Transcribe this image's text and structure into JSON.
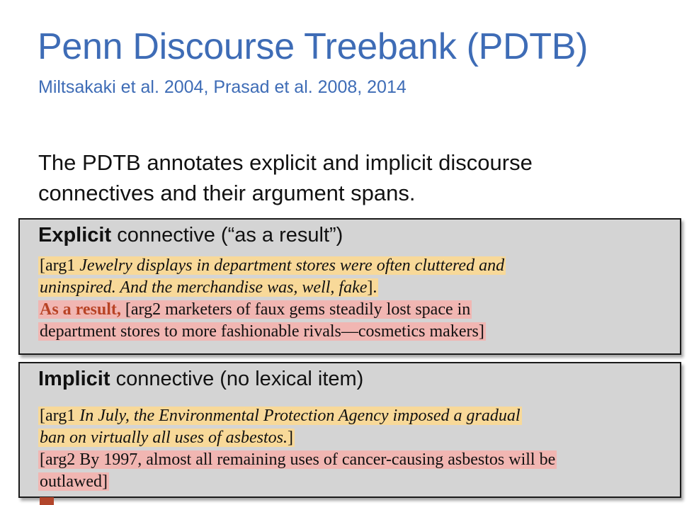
{
  "slide": {
    "title": "Penn Discourse Treebank (PDTB)",
    "subtitle": "Miltsakaki et al. 2004, Prasad et al. 2008, 2014",
    "intro_line1": "The PDTB annotates explicit and implicit discourse",
    "intro_line2": "connectives and their argument spans."
  },
  "explicit": {
    "heading_bold": "Explicit",
    "heading_rest": " connective (“as a result”)",
    "arg1_open": "[arg1 ",
    "arg1_line1": "Jewelry displays in department stores were often cluttered and",
    "arg1_line2": "uninspired. And the merchandise was, well, fake",
    "arg1_close": "].",
    "connective": "As a result,",
    "arg2_line1": " [arg2 marketers of faux gems steadily lost space in",
    "arg2_line2": "department stores to more fashionable rivals—cosmetics makers]"
  },
  "implicit": {
    "heading_bold": "Implicit",
    "heading_rest": " connective (no lexical item)",
    "arg1_open": "[arg1 ",
    "arg1_line1": "In July, the Environmental Protection Agency imposed a gradual",
    "arg1_line2": "ban on virtually all uses of asbestos.",
    "arg1_close": "]",
    "arg2_line1": "[arg2 By 1997, almost all remaining uses of cancer-causing asbestos will be",
    "arg2_line2": "outlawed]"
  },
  "colors": {
    "title": "#3e6cb6",
    "arg1_highlight": "#f8d999",
    "arg2_highlight": "#f1b6b2",
    "connective": "#b84325",
    "box_background": "#d4d4d4"
  }
}
